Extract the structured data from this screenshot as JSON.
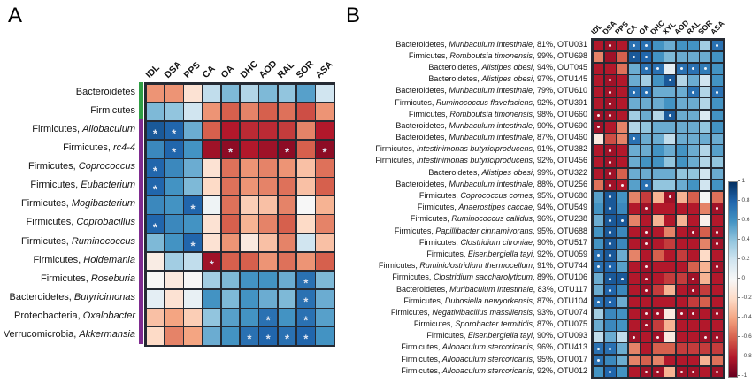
{
  "figure": {
    "panel_a_letter": "A",
    "panel_b_letter": "B"
  },
  "colorbar": {
    "ticks": [
      "1",
      "0.8",
      "0.6",
      "0.4",
      "0.2",
      "0",
      "-0.2",
      "-0.4",
      "-0.6",
      "-0.8",
      "-1"
    ],
    "top_color": "#053061",
    "zero_color": "#f7f7f7",
    "bottom_color": "#67001f",
    "orientation": "vertical",
    "blue_means": "positive correlation",
    "red_means": "negative correlation"
  },
  "chart_data": [
    {
      "type": "heatmap",
      "panel": "A",
      "colormap": "RdBu, blue = +1, red = -1",
      "value_range": [
        -1,
        1
      ],
      "columns": [
        "IDL",
        "DSA",
        "PPS",
        "CA",
        "OA",
        "DHC",
        "AOD",
        "RAL",
        "SOR",
        "ASA"
      ],
      "row_side_bar": {
        "green_rows": [
          0,
          1
        ],
        "purple_rows": [
          2,
          13
        ],
        "green": "#2f9e45",
        "purple": "#7e2b8f"
      },
      "rows": [
        {
          "prefix": "Bacteroidetes",
          "italic": ""
        },
        {
          "prefix": "Firmicutes",
          "italic": ""
        },
        {
          "prefix": "Firmicutes, ",
          "italic": "Allobaculum"
        },
        {
          "prefix": "Firmicutes, ",
          "italic": "rc4-4"
        },
        {
          "prefix": "Firmicutes, ",
          "italic": "Coprococcus"
        },
        {
          "prefix": "Firmicutes, ",
          "italic": "Eubacterium"
        },
        {
          "prefix": "Firmicutes, ",
          "italic": "Mogibacterium"
        },
        {
          "prefix": "Firmicutes, ",
          "italic": "Coprobacillus"
        },
        {
          "prefix": "Firmicutes, ",
          "italic": "Ruminococcus"
        },
        {
          "prefix": "Firmicutes, ",
          "italic": "Holdemania"
        },
        {
          "prefix": "Firmicutes, ",
          "italic": "Roseburia"
        },
        {
          "prefix": "Bacteroidetes, ",
          "italic": "Butyricimonas"
        },
        {
          "prefix": "Proteobacteria, ",
          "italic": "Oxalobacter"
        },
        {
          "prefix": "Verrucomicrobia, ",
          "italic": "Akkermansia"
        }
      ],
      "values": [
        [
          -0.45,
          -0.45,
          -0.15,
          0.25,
          0.45,
          0.3,
          0.45,
          0.4,
          0.55,
          0.2
        ],
        [
          0.45,
          0.4,
          0.2,
          -0.45,
          -0.6,
          -0.5,
          -0.6,
          -0.55,
          -0.65,
          -0.45
        ],
        [
          0.85,
          0.8,
          0.5,
          -0.6,
          -0.8,
          -0.75,
          -0.75,
          -0.7,
          -0.5,
          -0.8
        ],
        [
          0.65,
          0.8,
          0.6,
          -0.85,
          -0.9,
          -0.8,
          -0.85,
          -0.9,
          -0.6,
          -0.9
        ],
        [
          0.8,
          0.65,
          0.5,
          -0.15,
          -0.55,
          -0.45,
          -0.5,
          -0.45,
          -0.3,
          -0.55
        ],
        [
          0.8,
          0.6,
          0.45,
          -0.2,
          -0.55,
          -0.45,
          -0.5,
          -0.55,
          -0.3,
          -0.6
        ],
        [
          0.65,
          0.6,
          0.8,
          0.05,
          -0.55,
          -0.25,
          -0.3,
          -0.5,
          0.0,
          -0.35
        ],
        [
          0.8,
          0.65,
          0.6,
          -0.15,
          -0.6,
          -0.35,
          -0.5,
          -0.6,
          -0.2,
          -0.5
        ],
        [
          0.45,
          0.6,
          0.8,
          -0.15,
          -0.45,
          -0.1,
          -0.3,
          -0.5,
          0.2,
          -0.3
        ],
        [
          -0.08,
          0.35,
          0.25,
          -0.85,
          -0.6,
          -0.6,
          -0.45,
          -0.55,
          -0.45,
          -0.6
        ],
        [
          0.0,
          -0.1,
          0.0,
          0.35,
          0.45,
          0.6,
          0.6,
          0.5,
          0.75,
          0.45
        ],
        [
          0.1,
          -0.15,
          0.08,
          0.6,
          0.45,
          0.6,
          0.5,
          0.45,
          0.75,
          0.5
        ],
        [
          -0.3,
          -0.4,
          -0.25,
          0.4,
          0.55,
          0.6,
          0.75,
          0.6,
          0.75,
          0.55
        ],
        [
          -0.2,
          -0.5,
          -0.4,
          0.5,
          0.6,
          0.75,
          0.8,
          0.75,
          0.8,
          0.6
        ]
      ],
      "significant": [
        [],
        [],
        [
          0,
          1
        ],
        [
          1,
          4,
          7,
          9
        ],
        [
          0
        ],
        [
          0
        ],
        [
          2
        ],
        [
          0
        ],
        [
          2
        ],
        [
          3
        ],
        [
          8
        ],
        [
          8
        ],
        [
          6,
          8
        ],
        [
          5,
          6,
          7,
          8
        ]
      ],
      "significance_marker": "*"
    },
    {
      "type": "heatmap",
      "panel": "B",
      "colormap": "RdBu, blue = +1, red = -1",
      "value_range": [
        -1,
        1
      ],
      "columns": [
        "IDL",
        "DSA",
        "PPS",
        "CA",
        "OA",
        "DHC",
        "XYL",
        "AOD",
        "RAL",
        "SOR",
        "ASA"
      ],
      "rows": [
        {
          "prefix": "Bacteroidetes, ",
          "italic": "Muribaculum intestinale",
          "suffix": ", 81%, OTU031"
        },
        {
          "prefix": "Firmicutes, ",
          "italic": "Romboutsia timonensis",
          "suffix": ", 99%, OTU698"
        },
        {
          "prefix": "Bacteroidetes, ",
          "italic": "Alistipes obesi",
          "suffix": ", 94%, OUT045"
        },
        {
          "prefix": "Bacteroidetes, ",
          "italic": "Alistipes obesi",
          "suffix": ", 97%, OTU145"
        },
        {
          "prefix": "Bacteroidetes, ",
          "italic": "Muribaculum intestinale",
          "suffix": ", 79%, OTU610"
        },
        {
          "prefix": "Firmicutes, ",
          "italic": "Ruminococcus flavefaciens",
          "suffix": ", 92%, OTU391"
        },
        {
          "prefix": "Firmicutes, ",
          "italic": "Romboutsia timonensis",
          "suffix": ", 98%, OTU660"
        },
        {
          "prefix": "Bacteroidetes, ",
          "italic": "Muribaculum intestinale",
          "suffix": ", 90%, OTU690"
        },
        {
          "prefix": "Bacteroidetes, ",
          "italic": "Muribaculum intestinale",
          "suffix": ", 87%, OTU460"
        },
        {
          "prefix": "Firmicutes, ",
          "italic": "Intestinimonas butyriciproducens",
          "suffix": ", 91%, OTU382"
        },
        {
          "prefix": "Firmicutes, ",
          "italic": "Intestinimonas butyriciproducens",
          "suffix": ", 92%, OTU456"
        },
        {
          "prefix": "Bacteroidetes, ",
          "italic": "Alistipes obesi",
          "suffix": ", 99%, OTU322"
        },
        {
          "prefix": "Bacteroidetes, ",
          "italic": "Muribaculum intestinale",
          "suffix": ", 88%, OTU256"
        },
        {
          "prefix": "Firmicutes, ",
          "italic": "Coprococcus comes",
          "suffix": ", 95%, OTU680"
        },
        {
          "prefix": "Firmicutes, ",
          "italic": "Anaerostipes caccae",
          "suffix": ", 94%, OTU549"
        },
        {
          "prefix": "Firmicutes, ",
          "italic": "Ruminococcus callidus",
          "suffix": ", 96%, OTU238"
        },
        {
          "prefix": "Firmicutes, ",
          "italic": "Papillibacter cinnamivorans",
          "suffix": ", 95%, OTU688"
        },
        {
          "prefix": "Firmicutes, ",
          "italic": "Clostridium citroniae",
          "suffix": ", 90%, OTU517"
        },
        {
          "prefix": "Firmicutes, ",
          "italic": "Eisenbergiella tayi",
          "suffix": ", 92%, OTU059"
        },
        {
          "prefix": "Firmicutes, ",
          "italic": "Ruminiclostridium thermocellum",
          "suffix": ", 91%, OTU744"
        },
        {
          "prefix": "Firmicutes, ",
          "italic": "Clostridium saccharolyticum",
          "suffix": ", 89%, OTU106"
        },
        {
          "prefix": "Bacteroidetes, ",
          "italic": "Muribaculum intestinale",
          "suffix": ", 83%, OTU117"
        },
        {
          "prefix": "Firmicutes, ",
          "italic": "Dubosiella newyorkensis",
          "suffix": ", 87%, OTU104"
        },
        {
          "prefix": "Firmicutes, ",
          "italic": "Negativibacillus massiliensis",
          "suffix": ", 93%, OTU074"
        },
        {
          "prefix": "Firmicutes, ",
          "italic": "Sporobacter termitidis",
          "suffix": ", 87%, OTU075"
        },
        {
          "prefix": "Firmicutes, ",
          "italic": "Eisenbergiella tayi",
          "suffix": ", 90%, OTU093"
        },
        {
          "prefix": "Firmicutes, ",
          "italic": "Allobaculum stercoricanis",
          "suffix": ", 96%, OTU413"
        },
        {
          "prefix": "Firmicutes, ",
          "italic": "Allobaculum stercoricanis",
          "suffix": ", 95%, OTU017"
        },
        {
          "prefix": "Firmicutes, ",
          "italic": "Allobaculum stercoricanis",
          "suffix": ", 92%, OTU012"
        }
      ],
      "values": [
        [
          -0.8,
          -0.85,
          -0.8,
          0.75,
          0.75,
          0.6,
          0.5,
          0.6,
          0.6,
          0.35,
          0.75
        ],
        [
          -0.5,
          -0.85,
          -0.6,
          0.85,
          0.8,
          0.6,
          0.45,
          0.5,
          0.5,
          0.5,
          0.6
        ],
        [
          -0.8,
          -0.8,
          -0.55,
          0.5,
          0.75,
          0.75,
          0.1,
          0.75,
          0.75,
          0.7,
          0.6
        ],
        [
          -0.8,
          -0.85,
          -0.8,
          0.5,
          0.35,
          0.6,
          0.85,
          0.3,
          0.5,
          0.2,
          0.6
        ],
        [
          -0.8,
          -0.85,
          -0.8,
          0.75,
          0.75,
          0.5,
          0.5,
          0.5,
          0.75,
          0.3,
          0.75
        ],
        [
          -0.8,
          -0.85,
          -0.8,
          0.5,
          0.5,
          0.5,
          0.6,
          0.5,
          0.5,
          0.3,
          0.6
        ],
        [
          -0.85,
          -0.85,
          -0.8,
          0.35,
          0.5,
          0.3,
          0.85,
          0.5,
          0.5,
          0.15,
          0.6
        ],
        [
          -0.85,
          -0.8,
          -0.5,
          0.3,
          0.4,
          0.5,
          0.5,
          0.5,
          0.5,
          0.4,
          0.6
        ],
        [
          -0.1,
          -0.65,
          -0.5,
          0.75,
          0.5,
          0.5,
          0.25,
          0.5,
          0.5,
          0.5,
          0.5
        ],
        [
          -0.8,
          -0.85,
          -0.8,
          0.5,
          0.5,
          0.6,
          0.5,
          0.6,
          0.5,
          0.3,
          0.55
        ],
        [
          -0.8,
          -0.85,
          -0.8,
          0.5,
          0.6,
          0.6,
          0.4,
          0.6,
          0.5,
          0.3,
          0.4
        ],
        [
          -0.8,
          -0.85,
          -0.6,
          0.5,
          0.5,
          0.5,
          0.5,
          0.4,
          0.4,
          0.2,
          0.5
        ],
        [
          -0.55,
          -0.85,
          -0.8,
          0.55,
          0.75,
          0.4,
          0.4,
          0.5,
          0.6,
          0.2,
          0.6
        ],
        [
          0.55,
          0.85,
          0.6,
          -0.5,
          -0.7,
          -0.35,
          -0.85,
          -0.35,
          -0.6,
          0.02,
          -0.55
        ],
        [
          0.6,
          0.85,
          0.65,
          -0.8,
          -0.85,
          -0.8,
          -0.8,
          -0.8,
          -0.8,
          -0.5,
          -0.85
        ],
        [
          0.5,
          0.85,
          0.85,
          -0.5,
          -0.8,
          -0.35,
          -0.8,
          -0.35,
          -0.8,
          -0.05,
          -0.8
        ],
        [
          0.6,
          0.85,
          0.65,
          -0.8,
          -0.85,
          -0.8,
          -0.5,
          -0.8,
          -0.85,
          -0.6,
          -0.85
        ],
        [
          0.6,
          0.85,
          0.65,
          -0.8,
          -0.85,
          -0.8,
          -0.7,
          -0.8,
          -0.8,
          -0.5,
          -0.85
        ],
        [
          0.75,
          0.85,
          0.5,
          -0.5,
          -0.8,
          -0.6,
          -0.8,
          -0.7,
          -0.8,
          -0.2,
          -0.8
        ],
        [
          0.75,
          0.8,
          0.55,
          -0.8,
          -0.85,
          -0.8,
          -0.8,
          -0.8,
          -0.6,
          -0.35,
          -0.85
        ],
        [
          0.5,
          0.85,
          0.85,
          -0.8,
          -0.85,
          -0.8,
          -0.7,
          -0.7,
          -0.85,
          -0.35,
          -0.8
        ],
        [
          0.5,
          0.8,
          0.65,
          -0.8,
          -0.85,
          -0.7,
          -0.35,
          -0.8,
          -0.85,
          -0.7,
          -0.8
        ],
        [
          0.75,
          0.8,
          0.5,
          -0.8,
          -0.8,
          -0.8,
          -0.8,
          -0.8,
          -0.7,
          -0.6,
          -0.8
        ],
        [
          0.35,
          0.65,
          0.6,
          -0.8,
          -0.85,
          -0.85,
          -0.1,
          -0.85,
          -0.85,
          -0.8,
          -0.85
        ],
        [
          0.5,
          0.65,
          0.6,
          -0.8,
          -0.85,
          -0.7,
          -0.35,
          -0.8,
          -0.8,
          -0.8,
          -0.8
        ],
        [
          0.25,
          0.5,
          0.25,
          -0.85,
          -0.8,
          -0.85,
          -0.1,
          -0.8,
          -0.8,
          -0.85,
          -0.85
        ],
        [
          0.75,
          0.75,
          0.5,
          -0.5,
          -0.8,
          -0.6,
          -0.6,
          -0.7,
          -0.7,
          -0.7,
          -0.7
        ],
        [
          0.75,
          0.65,
          0.5,
          -0.5,
          -0.6,
          -0.5,
          -0.8,
          -0.8,
          -0.8,
          -0.35,
          -0.55
        ],
        [
          0.6,
          0.8,
          0.6,
          -0.8,
          -0.85,
          -0.85,
          -0.35,
          -0.85,
          -0.85,
          -0.8,
          -0.85
        ]
      ],
      "significant": [
        [
          1,
          3,
          4,
          10
        ],
        [
          3,
          4
        ],
        [
          4,
          5,
          7,
          8,
          9
        ],
        [
          1,
          6
        ],
        [
          1,
          3,
          4,
          8,
          10
        ],
        [
          1
        ],
        [
          0,
          1,
          6
        ],
        [
          0
        ],
        [
          3
        ],
        [
          1
        ],
        [
          1
        ],
        [
          1
        ],
        [
          1,
          2,
          4
        ],
        [
          1,
          6
        ],
        [
          1,
          4,
          10
        ],
        [
          1,
          2
        ],
        [
          1,
          4,
          8,
          10
        ],
        [
          1,
          4,
          10
        ],
        [
          0,
          1
        ],
        [
          0,
          1,
          4,
          10
        ],
        [
          1,
          2,
          4,
          8
        ],
        [
          1,
          4,
          8
        ],
        [
          0,
          1
        ],
        [
          4,
          5,
          7,
          8,
          10
        ],
        [
          4
        ],
        [
          3,
          5,
          9,
          10
        ],
        [
          0,
          1
        ],
        [
          0
        ],
        [
          1,
          4,
          5,
          7,
          8,
          10
        ]
      ],
      "significance_marker": "*"
    }
  ]
}
